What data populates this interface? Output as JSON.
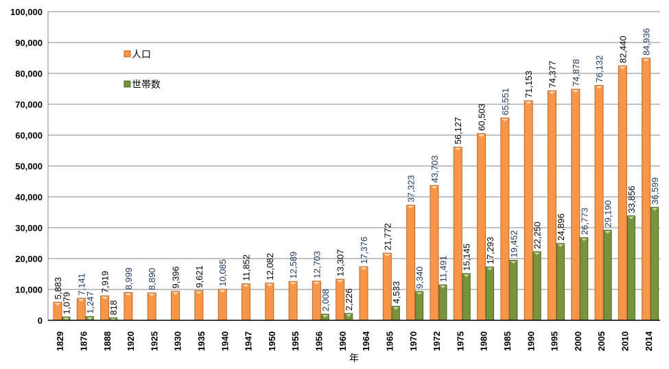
{
  "chart_data": {
    "type": "bar",
    "title": "",
    "xlabel": "年",
    "ylabel": "",
    "ylim": [
      0,
      100000
    ],
    "yticks": [
      "0",
      "10,000",
      "20,000",
      "30,000",
      "40,000",
      "50,000",
      "60,000",
      "70,000",
      "80,000",
      "90,000",
      "100,000"
    ],
    "grid": true,
    "legend_position": "top-left",
    "categories": [
      "1829",
      "1876",
      "1888",
      "1920",
      "1925",
      "1930",
      "1935",
      "1940",
      "1947",
      "1950",
      "1955",
      "1956",
      "1960",
      "1964",
      "1965",
      "1970",
      "1972",
      "1975",
      "1980",
      "1985",
      "1990",
      "1995",
      "2000",
      "2005",
      "2010",
      "2014"
    ],
    "series": [
      {
        "name": "人口",
        "color": "#f79646",
        "values": [
          5883,
          7141,
          7919,
          8999,
          8890,
          9396,
          9621,
          10085,
          11852,
          12082,
          12589,
          12703,
          13307,
          17376,
          21772,
          37323,
          43703,
          56127,
          60503,
          65551,
          71153,
          74377,
          74878,
          76132,
          82440,
          84936
        ]
      },
      {
        "name": "世帯数",
        "color": "#77933c",
        "values": [
          1079,
          1247,
          818,
          null,
          null,
          null,
          null,
          null,
          null,
          null,
          null,
          2008,
          2226,
          null,
          4533,
          9340,
          11491,
          15145,
          17293,
          19452,
          22250,
          24896,
          26773,
          29190,
          33856,
          36599
        ]
      }
    ]
  }
}
